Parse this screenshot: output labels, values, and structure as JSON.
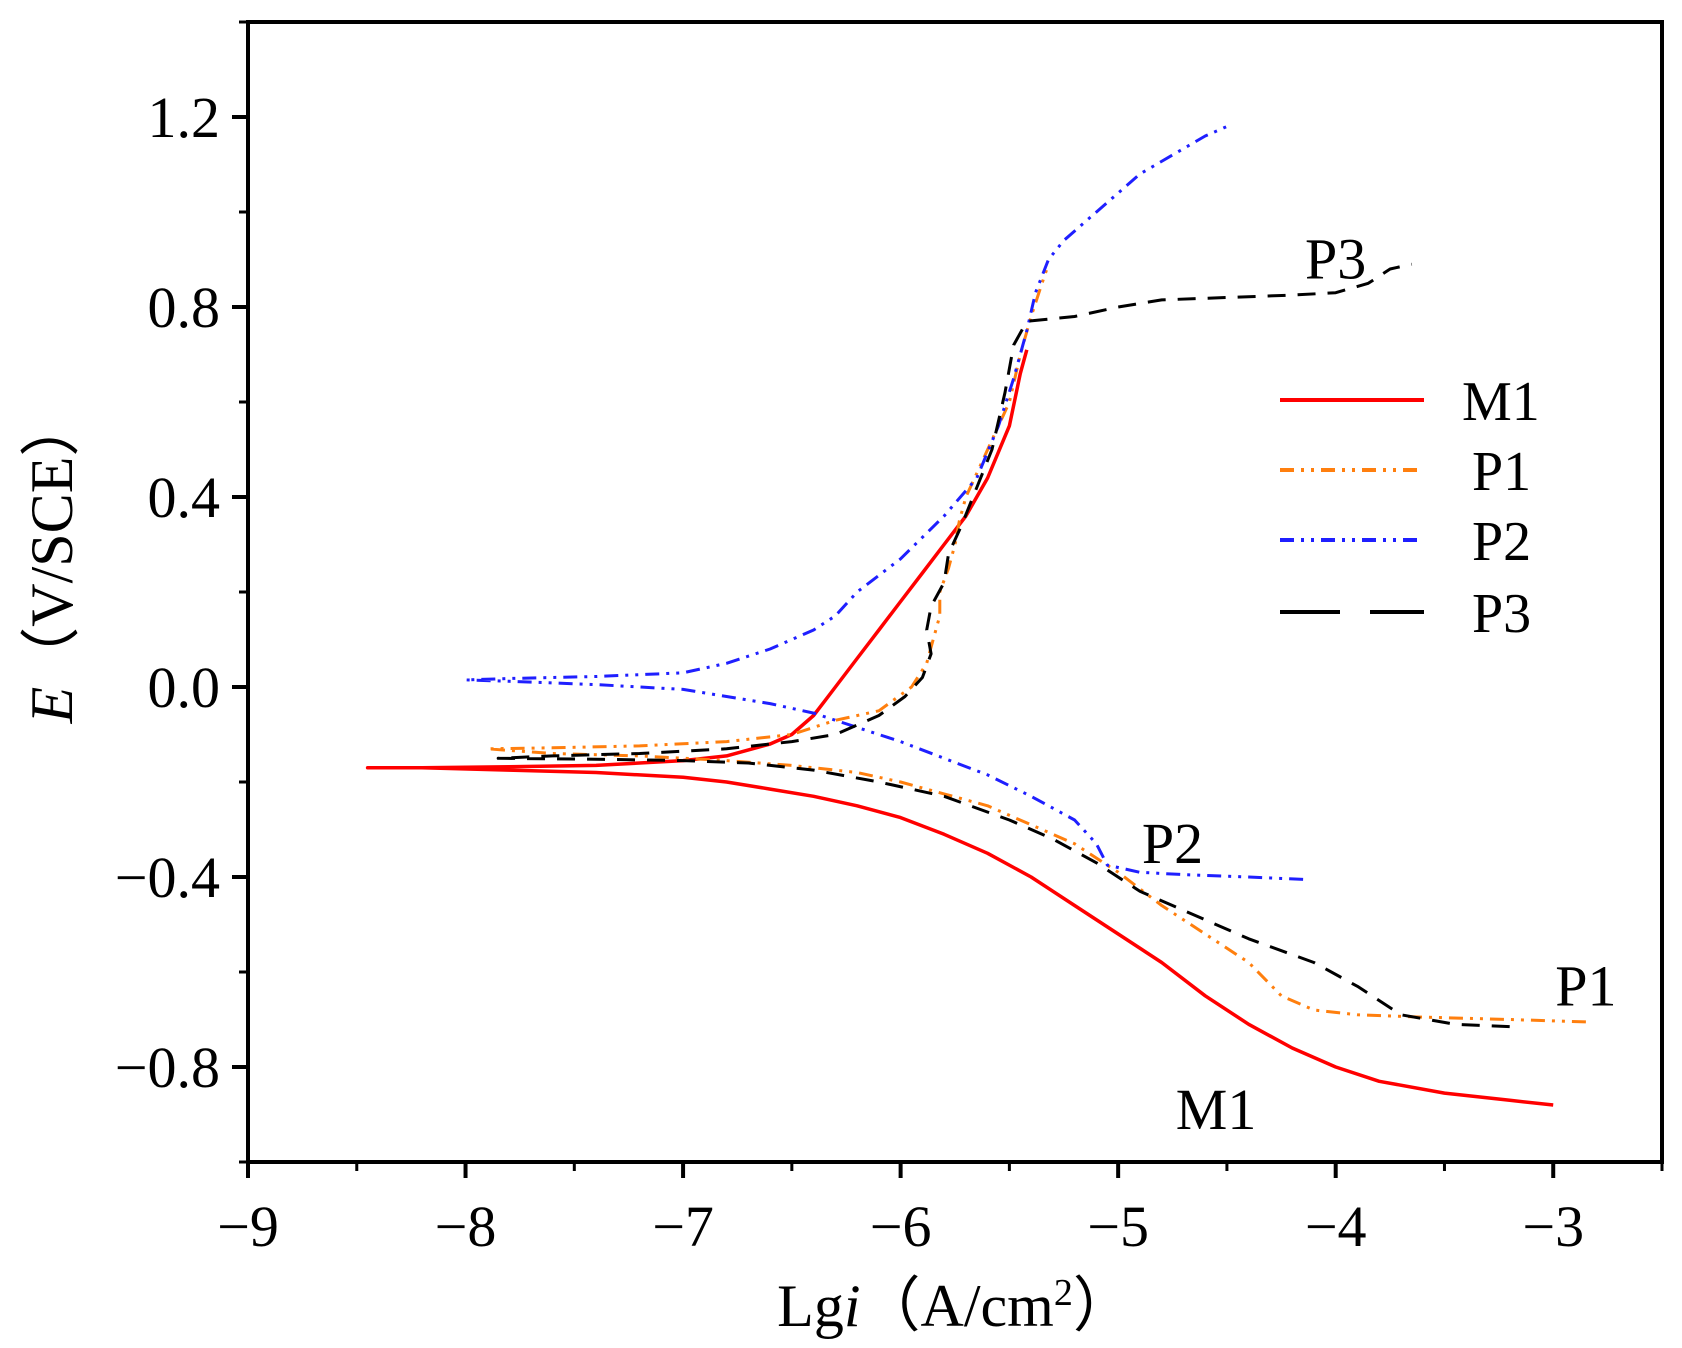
{
  "chart_data": {
    "type": "line",
    "xlabel": {
      "main": "Lg",
      "italic": "i",
      "unit_open": "（A/cm",
      "unit_sup": "2",
      "unit_close": "）"
    },
    "ylabel": {
      "italic": "E",
      "unit": "（V/SCE）"
    },
    "xlim": [
      -9,
      -2.5
    ],
    "ylim": [
      -1.0,
      1.4
    ],
    "x_ticks": [
      -9,
      -8,
      -7,
      -6,
      -5,
      -4,
      -3
    ],
    "x_tick_labels": [
      "−9",
      "−8",
      "−7",
      "−6",
      "−5",
      "−4",
      "−3"
    ],
    "y_ticks": [
      -0.8,
      -0.4,
      0.0,
      0.4,
      0.8,
      1.2
    ],
    "y_tick_labels": [
      "−0.8",
      "−0.4",
      "0.0",
      "0.4",
      "0.8",
      "1.2"
    ],
    "legend": {
      "position": "right-middle"
    },
    "series": [
      {
        "name": "M1",
        "color": "#ff0000",
        "dash": "solid",
        "points": [
          [
            -3.0,
            -0.88
          ],
          [
            -3.2,
            -0.87
          ],
          [
            -3.5,
            -0.855
          ],
          [
            -3.8,
            -0.83
          ],
          [
            -4.0,
            -0.8
          ],
          [
            -4.2,
            -0.76
          ],
          [
            -4.4,
            -0.71
          ],
          [
            -4.6,
            -0.65
          ],
          [
            -4.8,
            -0.58
          ],
          [
            -5.0,
            -0.52
          ],
          [
            -5.2,
            -0.46
          ],
          [
            -5.4,
            -0.4
          ],
          [
            -5.6,
            -0.35
          ],
          [
            -5.8,
            -0.31
          ],
          [
            -6.0,
            -0.275
          ],
          [
            -6.2,
            -0.25
          ],
          [
            -6.4,
            -0.23
          ],
          [
            -6.6,
            -0.215
          ],
          [
            -6.8,
            -0.2
          ],
          [
            -7.0,
            -0.19
          ],
          [
            -7.4,
            -0.18
          ],
          [
            -7.8,
            -0.175
          ],
          [
            -8.2,
            -0.17
          ],
          [
            -8.45,
            -0.17
          ],
          [
            -8.2,
            -0.17
          ],
          [
            -7.8,
            -0.168
          ],
          [
            -7.4,
            -0.165
          ],
          [
            -7.0,
            -0.155
          ],
          [
            -6.8,
            -0.145
          ],
          [
            -6.6,
            -0.12
          ],
          [
            -6.5,
            -0.1
          ],
          [
            -6.4,
            -0.06
          ],
          [
            -6.35,
            -0.03
          ],
          [
            -6.3,
            0.0
          ],
          [
            -6.2,
            0.06
          ],
          [
            -6.1,
            0.12
          ],
          [
            -6.0,
            0.18
          ],
          [
            -5.9,
            0.24
          ],
          [
            -5.8,
            0.3
          ],
          [
            -5.7,
            0.36
          ],
          [
            -5.6,
            0.44
          ],
          [
            -5.5,
            0.55
          ],
          [
            -5.45,
            0.66
          ],
          [
            -5.42,
            0.71
          ]
        ]
      },
      {
        "name": "P1",
        "color": "#ff7f0e",
        "dash": "dash-dot-dot",
        "points": [
          [
            -2.85,
            -0.705
          ],
          [
            -3.2,
            -0.7
          ],
          [
            -3.6,
            -0.695
          ],
          [
            -3.9,
            -0.69
          ],
          [
            -4.1,
            -0.68
          ],
          [
            -4.25,
            -0.65
          ],
          [
            -4.4,
            -0.58
          ],
          [
            -4.6,
            -0.52
          ],
          [
            -4.8,
            -0.46
          ],
          [
            -5.0,
            -0.39
          ],
          [
            -5.2,
            -0.33
          ],
          [
            -5.4,
            -0.29
          ],
          [
            -5.6,
            -0.25
          ],
          [
            -5.8,
            -0.225
          ],
          [
            -6.0,
            -0.2
          ],
          [
            -6.2,
            -0.18
          ],
          [
            -6.5,
            -0.165
          ],
          [
            -6.8,
            -0.155
          ],
          [
            -7.2,
            -0.145
          ],
          [
            -7.6,
            -0.14
          ],
          [
            -7.9,
            -0.13
          ],
          [
            -7.6,
            -0.128
          ],
          [
            -7.2,
            -0.124
          ],
          [
            -6.8,
            -0.115
          ],
          [
            -6.5,
            -0.1
          ],
          [
            -6.3,
            -0.07
          ],
          [
            -6.1,
            -0.05
          ],
          [
            -5.95,
            0.0
          ],
          [
            -5.88,
            0.05
          ],
          [
            -5.85,
            0.1
          ],
          [
            -5.82,
            0.15
          ],
          [
            -5.82,
            0.2
          ],
          [
            -5.78,
            0.25
          ],
          [
            -5.75,
            0.3
          ],
          [
            -5.73,
            0.35
          ],
          [
            -5.7,
            0.4
          ],
          [
            -5.65,
            0.45
          ],
          [
            -5.58,
            0.52
          ],
          [
            -5.5,
            0.6
          ],
          [
            -5.45,
            0.7
          ],
          [
            -5.4,
            0.78
          ],
          [
            -5.35,
            0.85
          ],
          [
            -5.32,
            0.89
          ]
        ]
      },
      {
        "name": "P2",
        "color": "#1f1fff",
        "dash": "dash-dot-dot",
        "points": [
          [
            -4.15,
            -0.405
          ],
          [
            -4.4,
            -0.4
          ],
          [
            -4.7,
            -0.395
          ],
          [
            -4.9,
            -0.39
          ],
          [
            -5.05,
            -0.375
          ],
          [
            -5.1,
            -0.33
          ],
          [
            -5.2,
            -0.28
          ],
          [
            -5.4,
            -0.23
          ],
          [
            -5.6,
            -0.185
          ],
          [
            -5.8,
            -0.15
          ],
          [
            -6.0,
            -0.115
          ],
          [
            -6.2,
            -0.085
          ],
          [
            -6.4,
            -0.055
          ],
          [
            -6.6,
            -0.035
          ],
          [
            -6.8,
            -0.02
          ],
          [
            -7.0,
            -0.005
          ],
          [
            -7.4,
            0.005
          ],
          [
            -7.8,
            0.012
          ],
          [
            -8.0,
            0.015
          ],
          [
            -7.8,
            0.018
          ],
          [
            -7.4,
            0.022
          ],
          [
            -7.0,
            0.03
          ],
          [
            -6.8,
            0.05
          ],
          [
            -6.6,
            0.08
          ],
          [
            -6.4,
            0.12
          ],
          [
            -6.3,
            0.15
          ],
          [
            -6.2,
            0.2
          ],
          [
            -6.0,
            0.27
          ],
          [
            -5.8,
            0.36
          ],
          [
            -5.65,
            0.44
          ],
          [
            -5.55,
            0.55
          ],
          [
            -5.48,
            0.65
          ],
          [
            -5.42,
            0.75
          ],
          [
            -5.38,
            0.83
          ],
          [
            -5.32,
            0.9
          ],
          [
            -5.25,
            0.94
          ],
          [
            -5.15,
            0.98
          ],
          [
            -5.0,
            1.04
          ],
          [
            -4.9,
            1.08
          ],
          [
            -4.75,
            1.12
          ],
          [
            -4.6,
            1.16
          ],
          [
            -4.5,
            1.18
          ]
        ]
      },
      {
        "name": "P3",
        "color": "#000000",
        "dash": "dashed",
        "points": [
          [
            -3.2,
            -0.715
          ],
          [
            -3.45,
            -0.71
          ],
          [
            -3.7,
            -0.69
          ],
          [
            -3.9,
            -0.63
          ],
          [
            -4.1,
            -0.58
          ],
          [
            -4.4,
            -0.53
          ],
          [
            -4.7,
            -0.47
          ],
          [
            -4.9,
            -0.43
          ],
          [
            -5.1,
            -0.37
          ],
          [
            -5.3,
            -0.32
          ],
          [
            -5.5,
            -0.28
          ],
          [
            -5.8,
            -0.23
          ],
          [
            -6.1,
            -0.2
          ],
          [
            -6.4,
            -0.175
          ],
          [
            -6.7,
            -0.16
          ],
          [
            -7.0,
            -0.155
          ],
          [
            -7.4,
            -0.152
          ],
          [
            -7.85,
            -0.15
          ],
          [
            -7.6,
            -0.145
          ],
          [
            -7.2,
            -0.14
          ],
          [
            -6.8,
            -0.13
          ],
          [
            -6.5,
            -0.115
          ],
          [
            -6.3,
            -0.1
          ],
          [
            -6.1,
            -0.06
          ],
          [
            -5.98,
            -0.02
          ],
          [
            -5.9,
            0.02
          ],
          [
            -5.86,
            0.07
          ],
          [
            -5.88,
            0.12
          ],
          [
            -5.86,
            0.17
          ],
          [
            -5.8,
            0.22
          ],
          [
            -5.78,
            0.28
          ],
          [
            -5.72,
            0.34
          ],
          [
            -5.65,
            0.42
          ],
          [
            -5.58,
            0.5
          ],
          [
            -5.52,
            0.62
          ],
          [
            -5.48,
            0.72
          ],
          [
            -5.42,
            0.77
          ],
          [
            -5.2,
            0.78
          ],
          [
            -5.0,
            0.8
          ],
          [
            -4.8,
            0.815
          ],
          [
            -4.5,
            0.82
          ],
          [
            -4.2,
            0.825
          ],
          [
            -4.0,
            0.83
          ],
          [
            -3.85,
            0.85
          ],
          [
            -3.75,
            0.88
          ],
          [
            -3.65,
            0.89
          ]
        ]
      }
    ],
    "annotations": [
      {
        "text": "P3",
        "x": -4.0,
        "y": 0.86
      },
      {
        "text": "P2",
        "x": -4.75,
        "y": -0.37
      },
      {
        "text": "P1",
        "x": -2.85,
        "y": -0.67
      },
      {
        "text": "M1",
        "x": -4.55,
        "y": -0.93
      }
    ]
  }
}
